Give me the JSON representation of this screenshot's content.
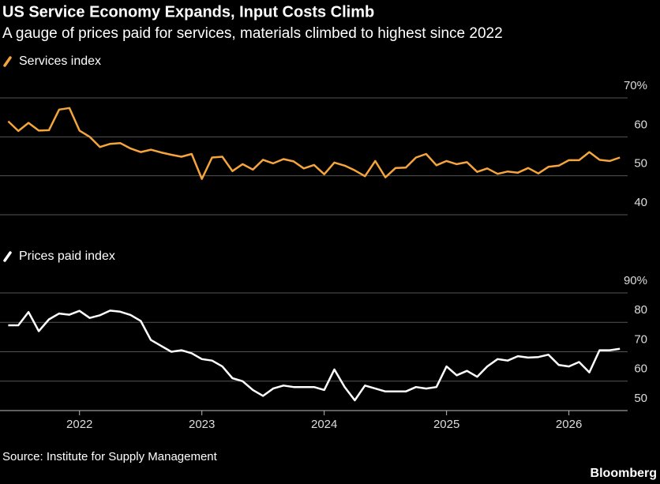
{
  "title": "US Service Economy Expands, Input Costs Climb",
  "subtitle": "A gauge of prices paid for services, materials climbed to highest since 2022",
  "source": "Source: Institute for Supply Management",
  "logo": "Bloomberg",
  "chart_data": [
    {
      "type": "line",
      "x": [
        2021.417,
        2021.5,
        2021.583,
        2021.667,
        2021.75,
        2021.833,
        2021.917,
        2022,
        2022.083,
        2022.167,
        2022.25,
        2022.333,
        2022.417,
        2022.5,
        2022.583,
        2022.667,
        2022.75,
        2022.833,
        2022.917,
        2023,
        2023.083,
        2023.167,
        2023.25,
        2023.333,
        2023.417,
        2023.5,
        2023.583,
        2023.667,
        2023.75,
        2023.833,
        2023.917,
        2024,
        2024.083,
        2024.167,
        2024.25,
        2024.333,
        2024.417,
        2024.5,
        2024.583,
        2024.667,
        2024.75,
        2024.833,
        2024.917,
        2025,
        2025.083,
        2025.167,
        2025.25,
        2025.333,
        2025.417,
        2025.5,
        2025.583,
        2025.667,
        2025.75,
        2025.833,
        2025.917,
        2026,
        2026.083,
        2026.167,
        2026.25,
        2026.333,
        2026.417
      ],
      "series": [
        {
          "name": "Services index",
          "color": "#f5a53c",
          "values": [
            64.0,
            61.5,
            63.6,
            61.6,
            61.7,
            67.0,
            67.4,
            61.6,
            60.0,
            57.4,
            58.2,
            58.4,
            57.0,
            56.1,
            56.7,
            56.0,
            55.4,
            54.9,
            55.6,
            49.2,
            54.7,
            54.9,
            51.2,
            53.0,
            51.6,
            54.1,
            53.2,
            54.3,
            53.7,
            51.9,
            52.8,
            50.4,
            53.4,
            52.6,
            51.4,
            49.9,
            53.8,
            49.6,
            52.0,
            52.1,
            54.7,
            55.6,
            52.7,
            53.8,
            53.0,
            53.5,
            51.0,
            51.9,
            50.5,
            51.1,
            50.8,
            52.0,
            50.6,
            52.3,
            52.6,
            54.0,
            54.0,
            56.1,
            54.1,
            53.8,
            54.7
          ]
        }
      ],
      "xlim": [
        2021.35,
        2026.48
      ],
      "ylim": [
        40,
        70
      ],
      "yticks": [
        40,
        50,
        60,
        {
          "value": 70,
          "label": "70%"
        }
      ],
      "grid": true
    },
    {
      "type": "line",
      "x": [
        2021.417,
        2021.5,
        2021.583,
        2021.667,
        2021.75,
        2021.833,
        2021.917,
        2022,
        2022.083,
        2022.167,
        2022.25,
        2022.333,
        2022.417,
        2022.5,
        2022.583,
        2022.667,
        2022.75,
        2022.833,
        2022.917,
        2023,
        2023.083,
        2023.167,
        2023.25,
        2023.333,
        2023.417,
        2023.5,
        2023.583,
        2023.667,
        2023.75,
        2023.833,
        2023.917,
        2024,
        2024.083,
        2024.167,
        2024.25,
        2024.333,
        2024.417,
        2024.5,
        2024.583,
        2024.667,
        2024.75,
        2024.833,
        2024.917,
        2025,
        2025.083,
        2025.167,
        2025.25,
        2025.333,
        2025.417,
        2025.5,
        2025.583,
        2025.667,
        2025.75,
        2025.833,
        2025.917,
        2026,
        2026.083,
        2026.167,
        2026.25,
        2026.333,
        2026.417
      ],
      "series": [
        {
          "name": "Prices paid index",
          "color": "#ffffff",
          "values": [
            79.0,
            79.0,
            83.5,
            77.0,
            81.0,
            83.0,
            82.6,
            83.9,
            81.5,
            82.4,
            84.0,
            83.6,
            82.5,
            80.5,
            74.0,
            72.0,
            70.0,
            70.5,
            69.5,
            67.5,
            67.0,
            65.0,
            61.0,
            60.0,
            57.0,
            55.0,
            57.5,
            58.5,
            58.0,
            58.0,
            58.0,
            57.0,
            64.0,
            58.0,
            53.5,
            58.5,
            57.5,
            56.5,
            56.5,
            56.5,
            58.0,
            57.5,
            58.0,
            65.0,
            62.0,
            63.5,
            61.5,
            65.0,
            67.5,
            67.0,
            68.5,
            68.0,
            68.2,
            69.0,
            65.5,
            65.0,
            66.5,
            63.0,
            70.5,
            70.5,
            71.0
          ]
        }
      ],
      "xlim": [
        2021.35,
        2026.48
      ],
      "xticks": [
        2022,
        2023,
        2024,
        2025,
        2026
      ],
      "ylim": [
        50,
        90
      ],
      "yticks": [
        50,
        60,
        70,
        80,
        {
          "value": 90,
          "label": "90%"
        }
      ],
      "grid": true
    }
  ]
}
